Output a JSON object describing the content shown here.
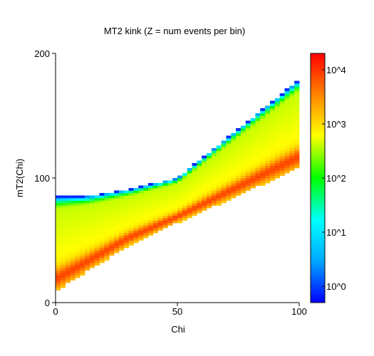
{
  "chart_data": {
    "type": "heatmap",
    "title": "MT2 kink (Z = num events per bin)",
    "xlabel": "Chi",
    "ylabel": "mT2(Chi)",
    "xlim": [
      0,
      100
    ],
    "ylim": [
      0,
      200
    ],
    "x_ticks": [
      "0",
      "50",
      "100"
    ],
    "y_ticks": [
      "0",
      "100",
      "200"
    ],
    "bin_size": {
      "x": 2,
      "y": 2
    },
    "z_scale": "log",
    "zlim": [
      0.5,
      20000
    ],
    "colorbar_ticks": [
      "10^0",
      "10^1",
      "10^2",
      "10^3",
      "10^4"
    ],
    "colorbar_tick_values": [
      1,
      10,
      100,
      1000,
      10000
    ],
    "region": {
      "description": "filled band of event counts",
      "upper_edge": [
        {
          "x": 0,
          "y": 85
        },
        {
          "x": 14,
          "y": 86
        },
        {
          "x": 30,
          "y": 91
        },
        {
          "x": 50,
          "y": 100
        },
        {
          "x": 100,
          "y": 179
        }
      ],
      "lower_edge": [
        {
          "x": 0,
          "y": 10
        },
        {
          "x": 30,
          "y": 47
        },
        {
          "x": 50,
          "y": 65
        },
        {
          "x": 100,
          "y": 109
        }
      ]
    }
  },
  "colors": {
    "scale": [
      "#0000ff",
      "#00aaff",
      "#00ffff",
      "#00ff00",
      "#ffff00",
      "#ff8800",
      "#ff0000"
    ]
  }
}
